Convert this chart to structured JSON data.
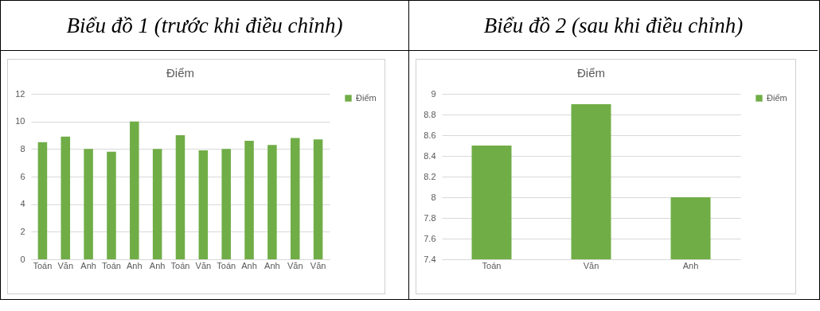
{
  "chart_data": [
    {
      "type": "bar",
      "title": "Biểu đồ 1 (trước khi điều chỉnh)",
      "subtitle": "Điểm",
      "categories": [
        "Toán",
        "Văn",
        "Anh",
        "Toán",
        "Anh",
        "Anh",
        "Toán",
        "Văn",
        "Toán",
        "Anh",
        "Anh",
        "Văn",
        "Văn"
      ],
      "series": [
        {
          "name": "Điểm",
          "color": "#70ad47",
          "values": [
            8.5,
            8.9,
            8,
            7.8,
            10,
            8,
            9,
            7.9,
            8,
            8.6,
            8.3,
            8.8,
            8.7
          ]
        }
      ],
      "ylim": [
        0,
        12
      ],
      "yticks": [
        0,
        2,
        4,
        6,
        8,
        10,
        12
      ],
      "grid": "y",
      "legend": "right"
    },
    {
      "type": "bar",
      "title": "Biểu đồ 2 (sau khi điều chỉnh)",
      "subtitle": "Điểm",
      "categories": [
        "Toán",
        "Văn",
        "Anh"
      ],
      "series": [
        {
          "name": "Điểm",
          "color": "#70ad47",
          "values": [
            8.5,
            8.9,
            8
          ]
        }
      ],
      "ylim": [
        7.4,
        9
      ],
      "yticks": [
        7.4,
        7.6,
        7.8,
        8,
        8.2,
        8.4,
        8.6,
        8.8,
        9
      ],
      "grid": "y",
      "legend": "right"
    }
  ]
}
